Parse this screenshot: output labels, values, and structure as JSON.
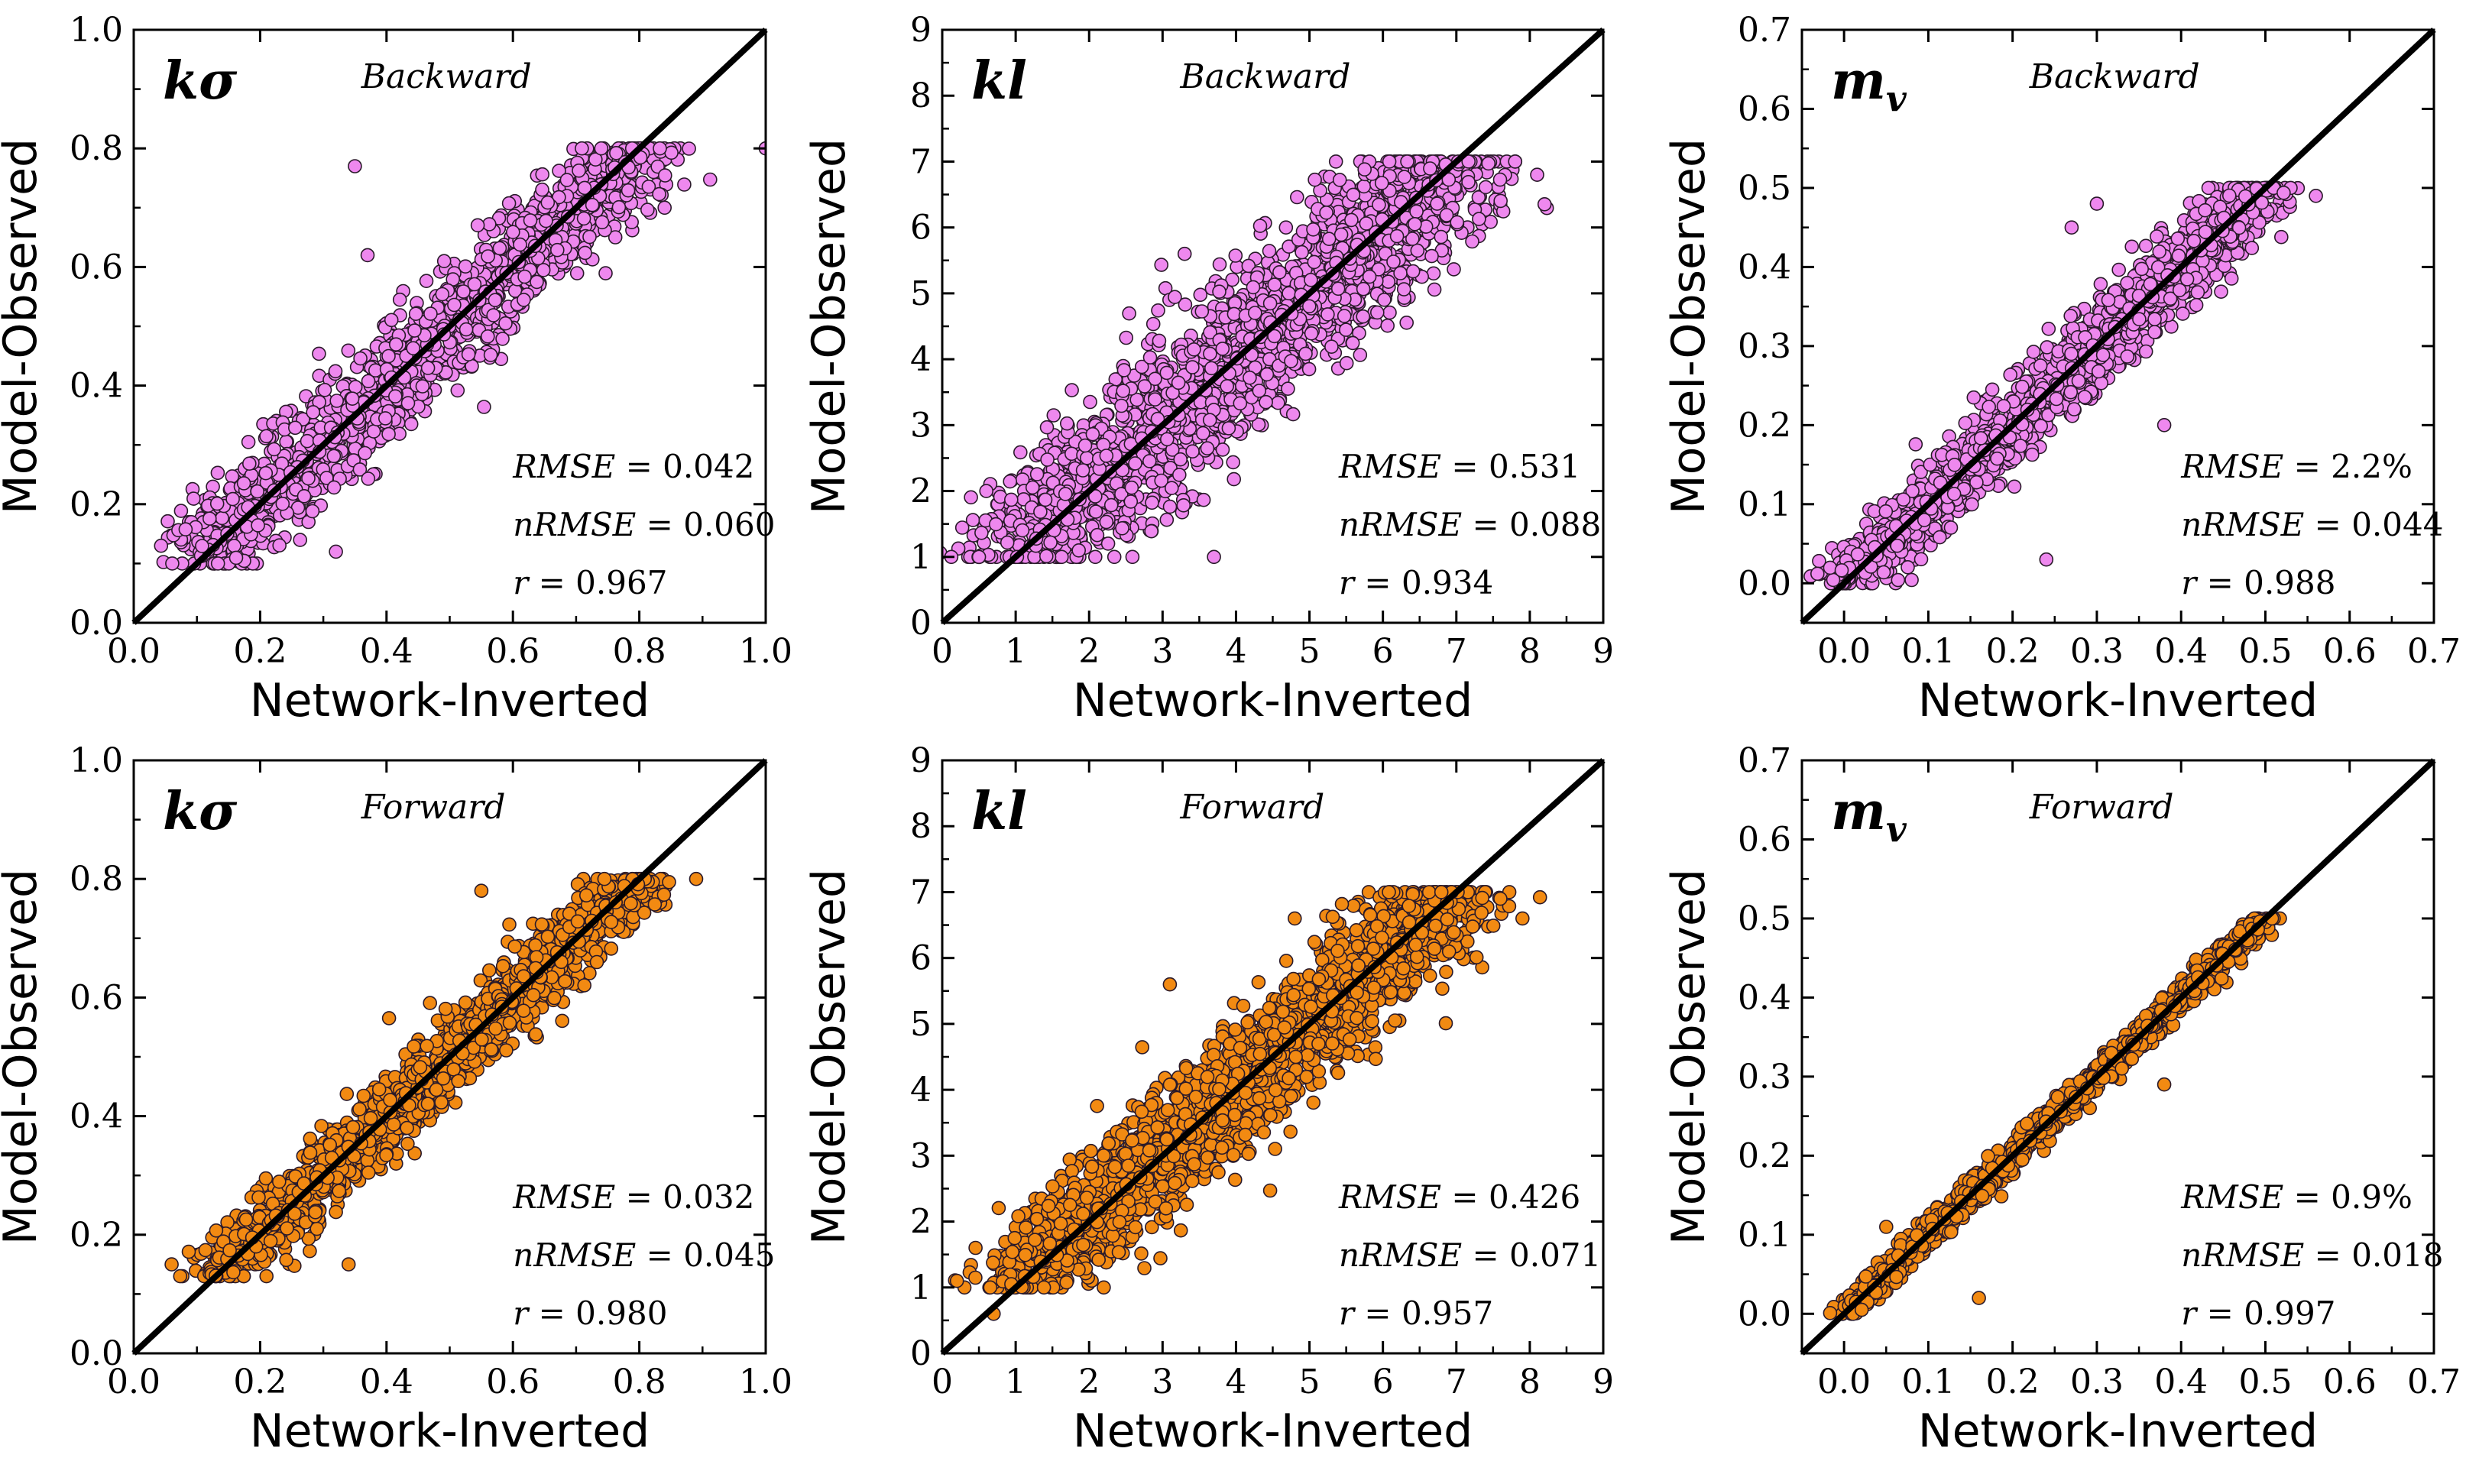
{
  "figure": {
    "marker_colors": {
      "Backward": "#ee88ee",
      "Forward": "#f28a12"
    },
    "marker_edge": "#2a1a2a",
    "line_color": "#000000"
  },
  "chart_data": [
    {
      "type": "scatter",
      "row": 0,
      "col": 0,
      "param": "kσ",
      "param_sub": "",
      "mode": "Backward",
      "xlabel": "Network-Inverted",
      "ylabel": "Model-Observed",
      "xlim": [
        0,
        1.0
      ],
      "ylim": [
        0,
        1.0
      ],
      "xticks": [
        "0.0",
        "0.2",
        "0.4",
        "0.6",
        "0.8",
        "1.0"
      ],
      "yticks": [
        "0.0",
        "0.2",
        "0.4",
        "0.6",
        "0.8",
        "1.0"
      ],
      "stats": {
        "rmse_label": "RMSE",
        "rmse": "0.042",
        "nrmse_label": "nRMSE",
        "nrmse": "0.060",
        "r_label": "r",
        "r": "0.967"
      },
      "scatter": {
        "lo": 0.1,
        "hi": 0.8,
        "sd": 0.045,
        "n": 1500,
        "seed": 11,
        "outliers": [
          [
            1.0,
            0.8
          ],
          [
            0.35,
            0.77
          ],
          [
            0.32,
            0.12
          ],
          [
            0.84,
            0.7
          ],
          [
            0.37,
            0.62
          ]
        ]
      }
    },
    {
      "type": "scatter",
      "row": 0,
      "col": 1,
      "param": "kl",
      "param_sub": "",
      "mode": "Backward",
      "xlabel": "Network-Inverted",
      "ylabel": "Model-Observed",
      "xlim": [
        0,
        9
      ],
      "ylim": [
        0,
        9
      ],
      "xticks": [
        "0",
        "1",
        "2",
        "3",
        "4",
        "5",
        "6",
        "7",
        "8",
        "9"
      ],
      "yticks": [
        "0",
        "1",
        "2",
        "3",
        "4",
        "5",
        "6",
        "7",
        "8",
        "9"
      ],
      "stats": {
        "rmse_label": "RMSE",
        "rmse": "0.531",
        "nrmse_label": "nRMSE",
        "nrmse": "0.088",
        "r_label": "r",
        "r": "0.934"
      },
      "scatter": {
        "lo": 1.0,
        "hi": 7.0,
        "sd": 0.55,
        "n": 2000,
        "seed": 23,
        "outliers": [
          [
            8.1,
            6.8
          ],
          [
            7.8,
            7.0
          ],
          [
            0.6,
            2.0
          ],
          [
            3.3,
            5.6
          ],
          [
            3.7,
            1.0
          ],
          [
            0.5,
            1.0
          ]
        ]
      }
    },
    {
      "type": "scatter",
      "row": 0,
      "col": 2,
      "param": "m",
      "param_sub": "v",
      "mode": "Backward",
      "xlabel": "Network-Inverted",
      "ylabel": "Model-Observed",
      "xlim": [
        -0.05,
        0.7
      ],
      "ylim": [
        -0.05,
        0.7
      ],
      "xticks": [
        "0.0",
        "0.1",
        "0.2",
        "0.3",
        "0.4",
        "0.5",
        "0.6",
        "0.7"
      ],
      "yticks": [
        "0.0",
        "0.1",
        "0.2",
        "0.3",
        "0.4",
        "0.5",
        "0.6",
        "0.7"
      ],
      "stats": {
        "rmse_label": "RMSE",
        "rmse": "2.2%",
        "nrmse_label": "nRMSE",
        "nrmse": "0.044",
        "r_label": "r",
        "r": "0.988"
      },
      "scatter": {
        "lo": 0.0,
        "hi": 0.5,
        "sd": 0.024,
        "n": 1500,
        "seed": 37,
        "outliers": [
          [
            0.56,
            0.49
          ],
          [
            0.27,
            0.45
          ],
          [
            0.3,
            0.48
          ],
          [
            0.24,
            0.03
          ],
          [
            0.38,
            0.2
          ]
        ]
      }
    },
    {
      "type": "scatter",
      "row": 1,
      "col": 0,
      "param": "kσ",
      "param_sub": "",
      "mode": "Forward",
      "xlabel": "Network-Inverted",
      "ylabel": "Model-Observed",
      "xlim": [
        0,
        1.0
      ],
      "ylim": [
        0,
        1.0
      ],
      "xticks": [
        "0.0",
        "0.2",
        "0.4",
        "0.6",
        "0.8",
        "1.0"
      ],
      "yticks": [
        "0.0",
        "0.2",
        "0.4",
        "0.6",
        "0.8",
        "1.0"
      ],
      "stats": {
        "rmse_label": "RMSE",
        "rmse": "0.032",
        "nrmse_label": "nRMSE",
        "nrmse": "0.045",
        "r_label": "r",
        "r": "0.980"
      },
      "scatter": {
        "lo": 0.13,
        "hi": 0.8,
        "sd": 0.032,
        "n": 1500,
        "seed": 41,
        "outliers": [
          [
            0.89,
            0.8
          ],
          [
            0.06,
            0.15
          ],
          [
            0.34,
            0.15
          ],
          [
            0.55,
            0.78
          ],
          [
            0.21,
            0.13
          ]
        ]
      }
    },
    {
      "type": "scatter",
      "row": 1,
      "col": 1,
      "param": "kl",
      "param_sub": "",
      "mode": "Forward",
      "xlabel": "Network-Inverted",
      "ylabel": "Model-Observed",
      "xlim": [
        0,
        9
      ],
      "ylim": [
        0,
        9
      ],
      "xticks": [
        "0",
        "1",
        "2",
        "3",
        "4",
        "5",
        "6",
        "7",
        "8",
        "9"
      ],
      "yticks": [
        "0",
        "1",
        "2",
        "3",
        "4",
        "5",
        "6",
        "7",
        "8",
        "9"
      ],
      "stats": {
        "rmse_label": "RMSE",
        "rmse": "0.426",
        "nrmse_label": "nRMSE",
        "nrmse": "0.071",
        "r_label": "r",
        "r": "0.957"
      },
      "scatter": {
        "lo": 1.0,
        "hi": 7.0,
        "sd": 0.43,
        "n": 2000,
        "seed": 53,
        "outliers": [
          [
            7.9,
            6.6
          ],
          [
            7.6,
            6.9
          ],
          [
            0.2,
            1.1
          ],
          [
            3.1,
            5.6
          ],
          [
            4.8,
            6.6
          ],
          [
            0.7,
            0.6
          ]
        ]
      }
    },
    {
      "type": "scatter",
      "row": 1,
      "col": 2,
      "param": "m",
      "param_sub": "v",
      "mode": "Forward",
      "xlabel": "Network-Inverted",
      "ylabel": "Model-Observed",
      "xlim": [
        -0.05,
        0.7
      ],
      "ylim": [
        -0.05,
        0.7
      ],
      "xticks": [
        "0.0",
        "0.1",
        "0.2",
        "0.3",
        "0.4",
        "0.5",
        "0.6",
        "0.7"
      ],
      "yticks": [
        "0.0",
        "0.1",
        "0.2",
        "0.3",
        "0.4",
        "0.5",
        "0.6",
        "0.7"
      ],
      "stats": {
        "rmse_label": "RMSE",
        "rmse": "0.9%",
        "nrmse_label": "nRMSE",
        "nrmse": "0.018",
        "r_label": "r",
        "r": "0.997"
      },
      "scatter": {
        "lo": 0.0,
        "hi": 0.5,
        "sd": 0.009,
        "n": 1200,
        "seed": 67,
        "outliers": [
          [
            0.16,
            0.02
          ],
          [
            0.38,
            0.29
          ],
          [
            0.05,
            0.11
          ]
        ]
      }
    }
  ]
}
